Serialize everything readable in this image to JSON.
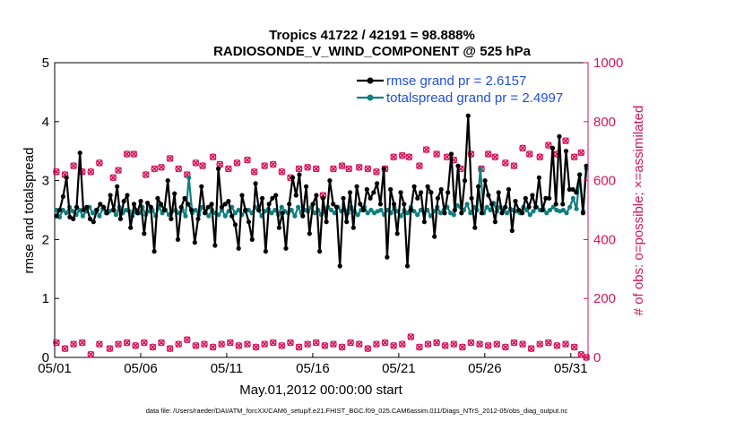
{
  "chart_data": {
    "type": "line",
    "title_line1": "Tropics 41722 / 42191 = 98.888%",
    "title_line2": "RADIOSONDE_V_WIND_COMPONENT @ 525 hPa",
    "xlabel": "May.01,2012 00:00:00 start",
    "ylabel_left": "rmse and totalspread",
    "ylabel_right": "# of obs: o=possible; ×=assimilated",
    "x_tick_labels": [
      "05/01",
      "05/06",
      "05/11",
      "05/16",
      "05/21",
      "05/26",
      "05/31"
    ],
    "x_tick_days": [
      0,
      5,
      10,
      15,
      20,
      25,
      30
    ],
    "xlim": [
      0,
      31
    ],
    "ylim_left": [
      0,
      5
    ],
    "ylim_right": [
      0,
      1000
    ],
    "y_left_ticks": [
      "0",
      "1",
      "2",
      "3",
      "4",
      "5"
    ],
    "y_right_ticks": [
      "0",
      "200",
      "400",
      "600",
      "800",
      "1000"
    ],
    "y_left_tick_values": [
      0,
      1,
      2,
      3,
      4,
      5
    ],
    "y_right_tick_values": [
      0,
      200,
      400,
      600,
      800,
      1000
    ],
    "series": [
      {
        "name": "rmse grand pr = 2.6157",
        "color": "#000000",
        "axis": "left",
        "values": [
          2.4,
          2.5,
          2.73,
          3.05,
          2.38,
          2.35,
          2.55,
          3.47,
          2.5,
          2.55,
          2.35,
          2.3,
          2.5,
          2.6,
          2.55,
          2.45,
          2.75,
          2.5,
          2.9,
          2.35,
          2.65,
          2.75,
          2.2,
          2.6,
          2.45,
          2.65,
          2.1,
          2.62,
          2.55,
          1.8,
          2.7,
          2.6,
          2.5,
          3.0,
          2.35,
          2.78,
          2.0,
          2.55,
          2.7,
          2.6,
          2.5,
          1.95,
          2.35,
          2.9,
          2.45,
          2.55,
          2.6,
          1.9,
          3.2,
          2.55,
          2.6,
          2.65,
          2.4,
          2.25,
          1.85,
          2.75,
          2.5,
          2.3,
          2.0,
          2.95,
          2.5,
          2.7,
          1.8,
          2.6,
          2.7,
          2.75,
          2.2,
          2.45,
          1.85,
          2.6,
          3.05,
          2.75,
          3.1,
          2.4,
          2.9,
          2.1,
          2.6,
          2.75,
          1.8,
          2.7,
          2.3,
          3.0,
          2.6,
          2.55,
          1.55,
          2.7,
          2.3,
          2.8,
          2.2,
          2.9,
          2.6,
          2.5,
          2.85,
          2.7,
          2.8,
          2.95,
          2.6,
          3.2,
          1.7,
          2.85,
          2.6,
          2.1,
          2.8,
          2.6,
          1.55,
          2.5,
          2.9,
          2.7,
          2.8,
          2.3,
          2.9,
          2.8,
          2.05,
          2.7,
          2.85,
          2.45,
          2.8,
          3.45,
          2.5,
          3.25,
          2.45,
          3.0,
          4.1,
          2.7,
          2.2,
          2.9,
          2.45,
          3.0,
          2.75,
          2.6,
          2.3,
          2.8,
          2.45,
          2.55,
          2.85,
          2.15,
          2.65,
          2.5,
          2.45,
          2.7,
          2.55,
          2.75,
          2.55,
          3.05,
          2.5,
          2.7,
          2.7,
          3.55,
          2.6,
          3.75,
          2.6,
          3.5,
          2.85,
          2.85,
          2.8,
          3.1,
          2.45,
          3.25
        ]
      },
      {
        "name": "totalspread grand pr = 2.4997",
        "color": "#0f7f7f",
        "axis": "left",
        "values": [
          2.5,
          2.38,
          2.5,
          2.45,
          2.55,
          2.48,
          2.42,
          2.5,
          2.4,
          2.48,
          2.55,
          2.45,
          2.5,
          2.4,
          2.52,
          2.45,
          2.48,
          2.5,
          2.42,
          2.55,
          2.45,
          2.5,
          2.48,
          2.4,
          2.5,
          2.45,
          2.55,
          2.42,
          2.48,
          2.5,
          2.4,
          2.55,
          2.45,
          2.5,
          2.42,
          2.48,
          2.5,
          2.45,
          2.5,
          2.4,
          3.05,
          2.45,
          2.5,
          2.42,
          2.55,
          2.48,
          2.4,
          2.5,
          2.45,
          2.42,
          2.5,
          2.4,
          2.48,
          2.55,
          2.45,
          2.5,
          2.42,
          2.48,
          2.5,
          2.45,
          2.55,
          2.5,
          2.4,
          2.48,
          2.52,
          2.45,
          2.5,
          2.42,
          2.55,
          2.48,
          2.45,
          2.5,
          2.4,
          2.55,
          2.45,
          2.5,
          2.48,
          2.55,
          2.45,
          2.5,
          2.42,
          2.48,
          2.55,
          2.5,
          2.45,
          2.55,
          2.48,
          2.5,
          2.45,
          2.55,
          2.48,
          2.42,
          2.5,
          2.55,
          2.45,
          2.5,
          2.45,
          2.48,
          2.5,
          2.42,
          2.5,
          2.45,
          2.55,
          2.48,
          2.4,
          2.5,
          2.45,
          2.55,
          2.48,
          2.42,
          2.5,
          2.45,
          2.5,
          2.4,
          2.48,
          2.55,
          2.45,
          2.5,
          2.55,
          2.45,
          2.42,
          2.58,
          2.55,
          2.5,
          2.6,
          2.45,
          2.55,
          2.5,
          3.2,
          2.45,
          2.55,
          2.5,
          2.62,
          2.48,
          2.55,
          2.5,
          2.45,
          2.52,
          2.5,
          2.48,
          2.45,
          2.55,
          2.5,
          2.42,
          2.48,
          2.55,
          2.5,
          2.52,
          2.45,
          2.5,
          2.55,
          2.5,
          2.48,
          2.5,
          2.45,
          2.55,
          2.7,
          2.52,
          3.1,
          2.48,
          3.2
        ]
      }
    ],
    "obs_possible_high": [
      {
        "x": 0.1,
        "y": 630
      },
      {
        "x": 0.6,
        "y": 620
      },
      {
        "x": 1.1,
        "y": 650
      },
      {
        "x": 1.6,
        "y": 630
      },
      {
        "x": 2.1,
        "y": 630
      },
      {
        "x": 2.6,
        "y": 660
      },
      {
        "x": 3.4,
        "y": 610
      },
      {
        "x": 3.7,
        "y": 635
      },
      {
        "x": 4.2,
        "y": 690
      },
      {
        "x": 4.6,
        "y": 690
      },
      {
        "x": 5.3,
        "y": 620
      },
      {
        "x": 5.8,
        "y": 640
      },
      {
        "x": 6.2,
        "y": 645
      },
      {
        "x": 6.7,
        "y": 675
      },
      {
        "x": 7.2,
        "y": 640
      },
      {
        "x": 7.7,
        "y": 620
      },
      {
        "x": 8.2,
        "y": 660
      },
      {
        "x": 8.6,
        "y": 650
      },
      {
        "x": 9.2,
        "y": 680
      },
      {
        "x": 9.6,
        "y": 655
      },
      {
        "x": 10.1,
        "y": 640
      },
      {
        "x": 10.6,
        "y": 660
      },
      {
        "x": 11.2,
        "y": 670
      },
      {
        "x": 11.6,
        "y": 630
      },
      {
        "x": 12.2,
        "y": 650
      },
      {
        "x": 12.7,
        "y": 655
      },
      {
        "x": 13.2,
        "y": 630
      },
      {
        "x": 13.7,
        "y": 610
      },
      {
        "x": 14.2,
        "y": 640
      },
      {
        "x": 14.7,
        "y": 645
      },
      {
        "x": 15.2,
        "y": 640
      },
      {
        "x": 15.6,
        "y": 550
      },
      {
        "x": 16.2,
        "y": 640
      },
      {
        "x": 16.7,
        "y": 650
      },
      {
        "x": 17.1,
        "y": 640
      },
      {
        "x": 17.7,
        "y": 645
      },
      {
        "x": 18.2,
        "y": 640
      },
      {
        "x": 18.7,
        "y": 630
      },
      {
        "x": 19.2,
        "y": 640
      },
      {
        "x": 19.7,
        "y": 680
      },
      {
        "x": 20.2,
        "y": 685
      },
      {
        "x": 20.6,
        "y": 680
      },
      {
        "x": 21.2,
        "y": 650
      },
      {
        "x": 21.6,
        "y": 705
      },
      {
        "x": 22.2,
        "y": 690
      },
      {
        "x": 22.8,
        "y": 680
      },
      {
        "x": 23.2,
        "y": 670
      },
      {
        "x": 23.6,
        "y": 640
      },
      {
        "x": 24.2,
        "y": 690
      },
      {
        "x": 24.8,
        "y": 640
      },
      {
        "x": 25.2,
        "y": 690
      },
      {
        "x": 25.6,
        "y": 680
      },
      {
        "x": 26.2,
        "y": 660
      },
      {
        "x": 26.7,
        "y": 650
      },
      {
        "x": 27.2,
        "y": 710
      },
      {
        "x": 27.6,
        "y": 690
      },
      {
        "x": 28.2,
        "y": 680
      },
      {
        "x": 28.7,
        "y": 720
      },
      {
        "x": 29.2,
        "y": 690
      },
      {
        "x": 29.7,
        "y": 735
      },
      {
        "x": 30.2,
        "y": 680
      },
      {
        "x": 30.6,
        "y": 695
      }
    ],
    "obs_assimilated_low": [
      {
        "x": 0.1,
        "y": 50
      },
      {
        "x": 0.6,
        "y": 30
      },
      {
        "x": 1.1,
        "y": 45
      },
      {
        "x": 1.6,
        "y": 50
      },
      {
        "x": 2.1,
        "y": 10
      },
      {
        "x": 2.6,
        "y": 45
      },
      {
        "x": 3.2,
        "y": 30
      },
      {
        "x": 3.7,
        "y": 45
      },
      {
        "x": 4.2,
        "y": 50
      },
      {
        "x": 4.7,
        "y": 40
      },
      {
        "x": 5.2,
        "y": 50
      },
      {
        "x": 5.7,
        "y": 35
      },
      {
        "x": 6.2,
        "y": 50
      },
      {
        "x": 6.7,
        "y": 30
      },
      {
        "x": 7.2,
        "y": 45
      },
      {
        "x": 7.7,
        "y": 60
      },
      {
        "x": 8.2,
        "y": 40
      },
      {
        "x": 8.7,
        "y": 45
      },
      {
        "x": 9.2,
        "y": 35
      },
      {
        "x": 9.7,
        "y": 45
      },
      {
        "x": 10.2,
        "y": 50
      },
      {
        "x": 10.7,
        "y": 40
      },
      {
        "x": 11.2,
        "y": 45
      },
      {
        "x": 11.7,
        "y": 35
      },
      {
        "x": 12.2,
        "y": 45
      },
      {
        "x": 12.7,
        "y": 50
      },
      {
        "x": 13.2,
        "y": 40
      },
      {
        "x": 13.7,
        "y": 50
      },
      {
        "x": 14.2,
        "y": 35
      },
      {
        "x": 14.7,
        "y": 45
      },
      {
        "x": 15.2,
        "y": 50
      },
      {
        "x": 15.7,
        "y": 40
      },
      {
        "x": 16.2,
        "y": 45
      },
      {
        "x": 16.7,
        "y": 35
      },
      {
        "x": 17.2,
        "y": 50
      },
      {
        "x": 17.7,
        "y": 45
      },
      {
        "x": 18.2,
        "y": 30
      },
      {
        "x": 18.7,
        "y": 45
      },
      {
        "x": 19.2,
        "y": 50
      },
      {
        "x": 19.7,
        "y": 40
      },
      {
        "x": 20.2,
        "y": 45
      },
      {
        "x": 20.7,
        "y": 70
      },
      {
        "x": 21.2,
        "y": 35
      },
      {
        "x": 21.7,
        "y": 45
      },
      {
        "x": 22.2,
        "y": 50
      },
      {
        "x": 22.7,
        "y": 40
      },
      {
        "x": 23.2,
        "y": 45
      },
      {
        "x": 23.7,
        "y": 35
      },
      {
        "x": 24.2,
        "y": 50
      },
      {
        "x": 24.7,
        "y": 45
      },
      {
        "x": 25.2,
        "y": 40
      },
      {
        "x": 25.7,
        "y": 45
      },
      {
        "x": 26.2,
        "y": 35
      },
      {
        "x": 26.7,
        "y": 50
      },
      {
        "x": 27.2,
        "y": 45
      },
      {
        "x": 27.7,
        "y": 30
      },
      {
        "x": 28.2,
        "y": 45
      },
      {
        "x": 28.7,
        "y": 50
      },
      {
        "x": 29.2,
        "y": 40
      },
      {
        "x": 29.7,
        "y": 45
      },
      {
        "x": 30.2,
        "y": 35
      },
      {
        "x": 30.6,
        "y": 10
      },
      {
        "x": 30.9,
        "y": 0
      }
    ],
    "obs_color": "#d4145a",
    "legend_position": "top-right"
  },
  "footer": "data file: /Users/raeder/DAI/ATM_forcXX/CAM6_setup/f.e21.FHIST_BGC.f09_025.CAM6assim.011/Diags_NTrS_2012-05/obs_diag_output.nc"
}
